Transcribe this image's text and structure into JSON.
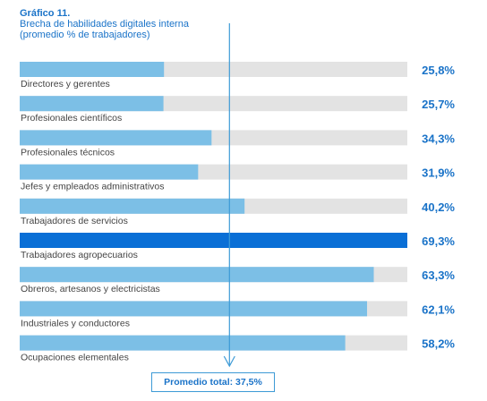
{
  "chart_data": {
    "type": "bar",
    "orientation": "horizontal",
    "title": "Gráfico 11.",
    "subtitle_lines": [
      "Brecha de habilidades digitales interna",
      "(promedio % de trabajadores)"
    ],
    "xlim": [
      0,
      69.3
    ],
    "categories": [
      "Directores y gerentes",
      "Profesionales científicos",
      "Profesionales técnicos",
      "Jefes y empleados administrativos",
      "Trabajadores de servicios",
      "Trabajadores agropecuarios",
      "Obreros, artesanos y electricistas",
      "Industriales y conductores",
      "Ocupaciones elementales"
    ],
    "values": [
      25.8,
      25.7,
      34.3,
      31.9,
      40.2,
      69.3,
      63.3,
      62.1,
      58.2
    ],
    "value_labels": [
      "25,8%",
      "25,7%",
      "34,3%",
      "31,9%",
      "40,2%",
      "69,3%",
      "63,3%",
      "62,1%",
      "58,2%"
    ],
    "highlight_index": 5,
    "average": 37.5,
    "average_label": "Promedio total: 37,5%",
    "colors": {
      "bar": "#7cbfe6",
      "highlight": "#0a6fd6",
      "track": "#e3e3e3",
      "value_text": "#1a73c8",
      "average_line": "#3d9ad6"
    }
  }
}
